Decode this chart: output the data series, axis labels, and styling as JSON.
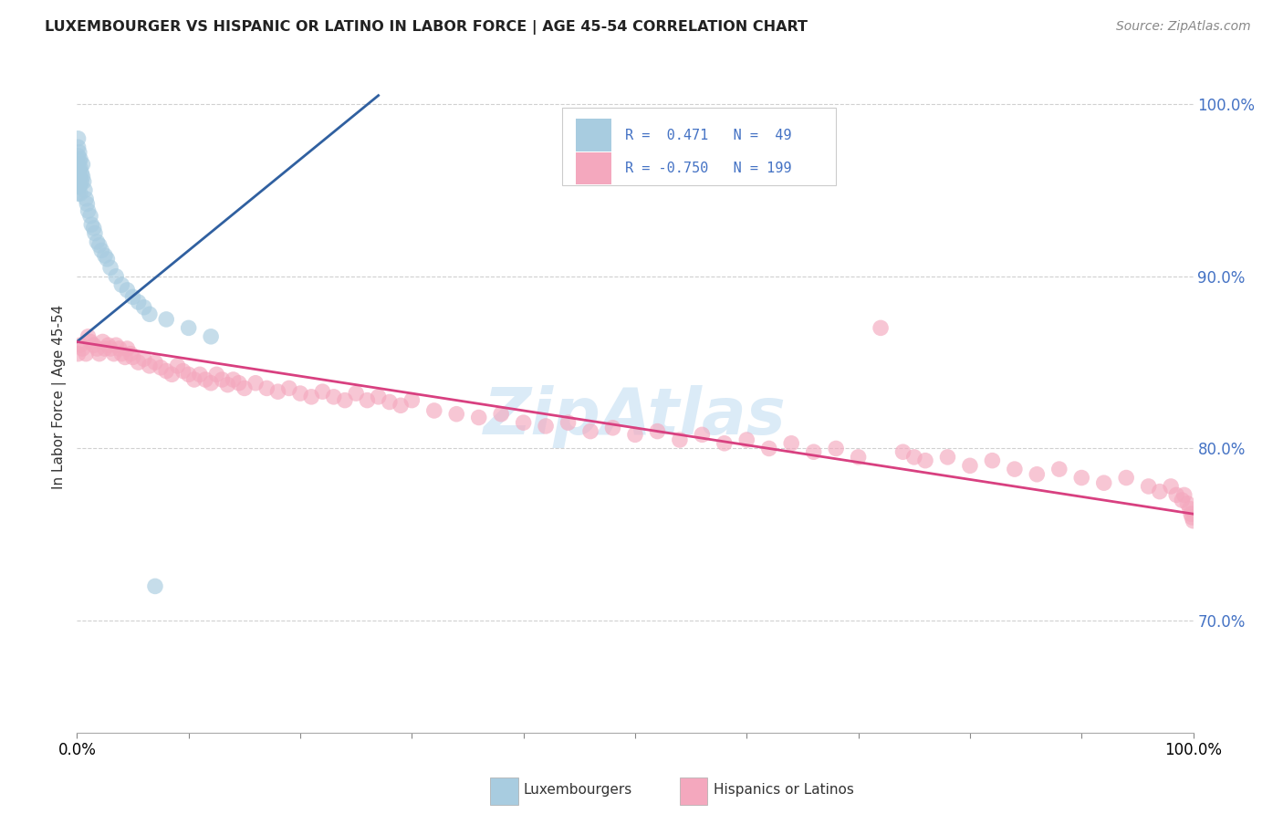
{
  "title": "LUXEMBOURGER VS HISPANIC OR LATINO IN LABOR FORCE | AGE 45-54 CORRELATION CHART",
  "source": "Source: ZipAtlas.com",
  "ylabel": "In Labor Force | Age 45-54",
  "xlim": [
    0.0,
    1.0
  ],
  "ylim": [
    0.635,
    1.025
  ],
  "yticks": [
    0.7,
    0.8,
    0.9,
    1.0
  ],
  "ytick_labels": [
    "70.0%",
    "80.0%",
    "90.0%",
    "100.0%"
  ],
  "xtick_left_label": "0.0%",
  "xtick_right_label": "100.0%",
  "legend_r1": "R =  0.471",
  "legend_n1": "N =  49",
  "legend_r2": "R = -0.750",
  "legend_n2": "N = 199",
  "blue_color": "#a8cce0",
  "pink_color": "#f4a8be",
  "blue_line_color": "#3060a0",
  "pink_line_color": "#d84080",
  "blue_scatter_x": [
    0.001,
    0.001,
    0.001,
    0.001,
    0.001,
    0.001,
    0.001,
    0.001,
    0.001,
    0.002,
    0.002,
    0.002,
    0.002,
    0.002,
    0.003,
    0.003,
    0.003,
    0.003,
    0.003,
    0.004,
    0.004,
    0.005,
    0.005,
    0.006,
    0.007,
    0.008,
    0.009,
    0.01,
    0.012,
    0.013,
    0.015,
    0.016,
    0.018,
    0.02,
    0.022,
    0.025,
    0.027,
    0.03,
    0.035,
    0.04,
    0.045,
    0.05,
    0.055,
    0.06,
    0.065,
    0.07,
    0.08,
    0.1,
    0.12
  ],
  "blue_scatter_y": [
    0.98,
    0.975,
    0.97,
    0.965,
    0.962,
    0.958,
    0.955,
    0.952,
    0.948,
    0.972,
    0.967,
    0.962,
    0.957,
    0.952,
    0.968,
    0.963,
    0.958,
    0.953,
    0.948,
    0.96,
    0.955,
    0.965,
    0.958,
    0.955,
    0.95,
    0.945,
    0.942,
    0.938,
    0.935,
    0.93,
    0.928,
    0.925,
    0.92,
    0.918,
    0.915,
    0.912,
    0.91,
    0.905,
    0.9,
    0.895,
    0.892,
    0.888,
    0.885,
    0.882,
    0.878,
    0.72,
    0.875,
    0.87,
    0.865
  ],
  "pink_scatter_x": [
    0.001,
    0.003,
    0.005,
    0.008,
    0.01,
    0.012,
    0.015,
    0.018,
    0.02,
    0.023,
    0.025,
    0.028,
    0.03,
    0.033,
    0.035,
    0.038,
    0.04,
    0.043,
    0.045,
    0.048,
    0.05,
    0.055,
    0.06,
    0.065,
    0.07,
    0.075,
    0.08,
    0.085,
    0.09,
    0.095,
    0.1,
    0.105,
    0.11,
    0.115,
    0.12,
    0.125,
    0.13,
    0.135,
    0.14,
    0.145,
    0.15,
    0.16,
    0.17,
    0.18,
    0.19,
    0.2,
    0.21,
    0.22,
    0.23,
    0.24,
    0.25,
    0.26,
    0.27,
    0.28,
    0.29,
    0.3,
    0.32,
    0.34,
    0.36,
    0.38,
    0.4,
    0.42,
    0.44,
    0.46,
    0.48,
    0.5,
    0.52,
    0.54,
    0.56,
    0.58,
    0.6,
    0.62,
    0.64,
    0.66,
    0.68,
    0.7,
    0.72,
    0.74,
    0.76,
    0.78,
    0.8,
    0.82,
    0.84,
    0.86,
    0.88,
    0.9,
    0.92,
    0.94,
    0.96,
    0.97,
    0.98,
    0.985,
    0.99,
    0.992,
    0.995,
    0.997,
    0.998,
    0.999,
    1.0,
    0.75
  ],
  "pink_scatter_y": [
    0.855,
    0.86,
    0.858,
    0.855,
    0.865,
    0.862,
    0.86,
    0.858,
    0.855,
    0.862,
    0.858,
    0.86,
    0.858,
    0.855,
    0.86,
    0.858,
    0.855,
    0.853,
    0.858,
    0.855,
    0.853,
    0.85,
    0.852,
    0.848,
    0.85,
    0.847,
    0.845,
    0.843,
    0.848,
    0.845,
    0.843,
    0.84,
    0.843,
    0.84,
    0.838,
    0.843,
    0.84,
    0.837,
    0.84,
    0.838,
    0.835,
    0.838,
    0.835,
    0.833,
    0.835,
    0.832,
    0.83,
    0.833,
    0.83,
    0.828,
    0.832,
    0.828,
    0.83,
    0.827,
    0.825,
    0.828,
    0.822,
    0.82,
    0.818,
    0.82,
    0.815,
    0.813,
    0.815,
    0.81,
    0.812,
    0.808,
    0.81,
    0.805,
    0.808,
    0.803,
    0.805,
    0.8,
    0.803,
    0.798,
    0.8,
    0.795,
    0.87,
    0.798,
    0.793,
    0.795,
    0.79,
    0.793,
    0.788,
    0.785,
    0.788,
    0.783,
    0.78,
    0.783,
    0.778,
    0.775,
    0.778,
    0.773,
    0.77,
    0.773,
    0.768,
    0.765,
    0.762,
    0.76,
    0.758,
    0.795
  ],
  "blue_trendline_x": [
    0.0,
    0.27
  ],
  "blue_trendline_y": [
    0.862,
    1.005
  ],
  "pink_trendline_x": [
    0.0,
    1.0
  ],
  "pink_trendline_y": [
    0.862,
    0.762
  ],
  "watermark": "ZipAtlas",
  "background_color": "#ffffff",
  "grid_color": "#d0d0d0",
  "ytick_color": "#4472c4",
  "legend_text_color": "#4472c4"
}
